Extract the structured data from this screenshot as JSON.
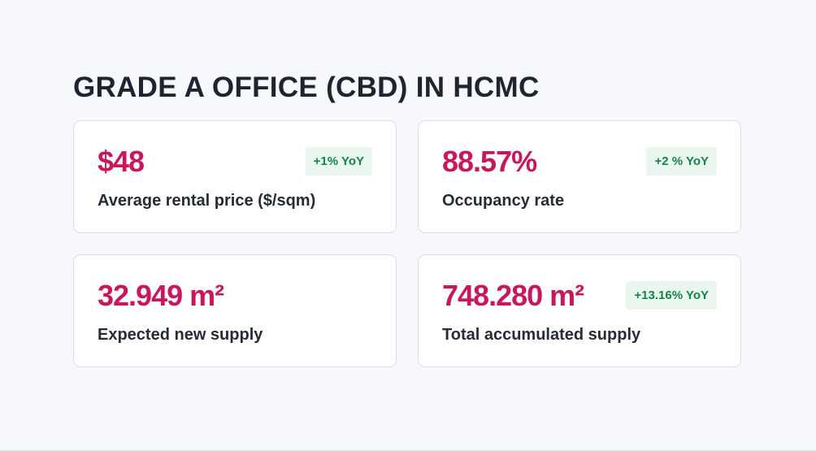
{
  "title": "GRADE A OFFICE (CBD) IN HCMC",
  "cards": [
    {
      "value": "$48",
      "label": "Average rental price ($/sqm)",
      "badge": "+1% YoY"
    },
    {
      "value": "88.57%",
      "label": "Occupancy rate",
      "badge": "+2 % YoY"
    },
    {
      "value": "32.949 m²",
      "label": "Expected new supply",
      "badge": ""
    },
    {
      "value": "748.280 m²",
      "label": "Total accumulated supply",
      "badge": "+13.16% YoY"
    }
  ],
  "colors": {
    "background": "#f7f8fc",
    "value": "#c8175d",
    "badge_bg": "#eaf7ef",
    "badge_text": "#13844a"
  }
}
